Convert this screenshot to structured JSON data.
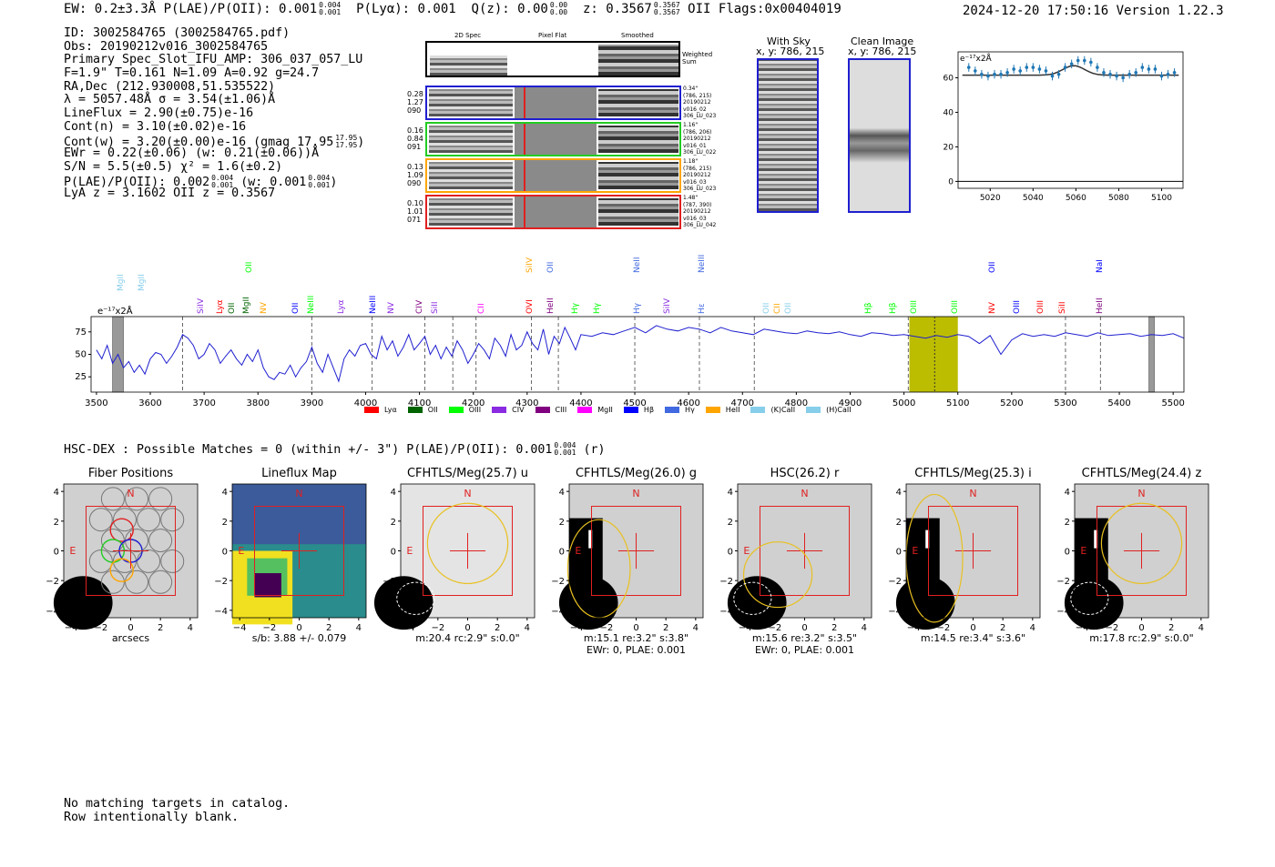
{
  "header": {
    "left": "EW: 0.2±3.3Å  P(LAE)/P(OII): 0.001",
    "plae_hi": "0.004",
    "plae_lo": "0.001",
    "plya": "P(Lyα): 0.001",
    "qz": "Q(z): 0.00",
    "qz_hi": "0.00",
    "qz_lo": "0.00",
    "z": "z: 0.3567",
    "z_hi": "0.3567",
    "z_lo": "0.3567",
    "z_tail": "OII    Flags:0x00404019",
    "right": "2024-12-20 17:50:16  Version 1.22.3"
  },
  "info": {
    "id": "ID: 3002584765 (3002584765.pdf)",
    "obs": "Obs: 20190212v016_3002584765",
    "primary": "Primary Spec_Slot_IFU_AMP: 306_037_057_LU",
    "fwhm": "F=1.9\"  T=0.161  N=1.09  A=0.92  g=24.7",
    "radec": "RA,Dec (212.930008,51.535522)",
    "lambda": "λ = 5057.48Å  σ = 3.54(±1.06)Å",
    "lineflux": "LineFlux = 2.90(±0.75)e-16",
    "contn": "Cont(n) = 3.10(±0.02)e-16",
    "contw": "Cont(w) = 3.20(±0.00)e-16 (gmag 17.95",
    "contw_hi": "17.95",
    "contw_lo": "17.95",
    "contw_tail": ")",
    "ewr": "EWr = 0.22(±0.06) (w: 0.21(±0.06))Å",
    "sn": "S/N = 5.5(±0.5)  χ² = 1.6(±0.2)",
    "plae": "P(LAE)/P(OII): 0.002",
    "plae_hi": "0.004",
    "plae_lo": "0.001",
    "plae_w": "(w: 0.001",
    "plae_w_hi": "0.004",
    "plae_w_lo": "0.001",
    "plae_tail": ")",
    "lya": "LyA z = 3.1602  OII z = 0.3567"
  },
  "spec2d": {
    "col_headers": [
      "2D Spec",
      "Pixel Flat",
      "Smoothed"
    ],
    "weighted_label": [
      "Weighted",
      "Sum"
    ],
    "rows": [
      {
        "left": [
          "0.28",
          "1.27",
          "090"
        ],
        "right": [
          "0.34\"",
          "(786, 215)",
          "20190212",
          "v016_02",
          "306_LU_023"
        ],
        "color": "#1f1fd0"
      },
      {
        "left": [
          "0.16",
          "0.84",
          "091"
        ],
        "right": [
          "1.16\"",
          "(786, 206)",
          "20190212",
          "v016_01",
          "306_LU_022"
        ],
        "color": "#22cc22"
      },
      {
        "left": [
          "0.13",
          "1.09",
          "090"
        ],
        "right": [
          "1.18\"",
          "(786, 215)",
          "20190212",
          "v016_03",
          "306_LU_023"
        ],
        "color": "#ffa500"
      },
      {
        "left": [
          "0.10",
          "1.01",
          "071"
        ],
        "right": [
          "1.48\"",
          "(787, 390)",
          "20190212",
          "v016_03",
          "306_LU_042"
        ],
        "color": "#e02020"
      }
    ]
  },
  "sky": {
    "title": "With Sky",
    "coord": "x, y: 786, 215"
  },
  "clean": {
    "title": "Clean Image",
    "coord": "x, y: 786, 215"
  },
  "chart_data": [
    {
      "type": "scatter",
      "title": "",
      "unit_label": "e⁻¹⁷x2Å",
      "x": [
        5010,
        5013,
        5016,
        5019,
        5022,
        5025,
        5028,
        5031,
        5034,
        5037,
        5040,
        5043,
        5046,
        5049,
        5052,
        5055,
        5058,
        5061,
        5064,
        5067,
        5070,
        5073,
        5076,
        5079,
        5082,
        5085,
        5088,
        5091,
        5094,
        5097,
        5100,
        5103,
        5106
      ],
      "y": [
        66,
        64,
        62,
        61,
        62,
        62,
        63,
        65,
        64,
        66,
        66,
        65,
        64,
        61,
        62,
        66,
        68,
        70,
        70,
        69,
        66,
        63,
        62,
        61,
        60,
        62,
        63,
        66,
        65,
        65,
        61,
        62,
        63
      ],
      "fit_baseline": 61.5,
      "fit_peak_x": 5059,
      "fit_peak_y": 67,
      "xticks": [
        5020,
        5040,
        5060,
        5080,
        5100
      ],
      "yticks": [
        0,
        20,
        40,
        60
      ],
      "xlim": [
        5005,
        5110
      ],
      "ylim": [
        -4,
        75
      ]
    },
    {
      "type": "line",
      "unit_label": "e⁻¹⁷x2Å",
      "xticks": [
        3500,
        3600,
        3700,
        3800,
        3900,
        4000,
        4100,
        4200,
        4300,
        4400,
        4500,
        4600,
        4700,
        4800,
        4900,
        5000,
        5100,
        5200,
        5300,
        5400,
        5500
      ],
      "yticks": [
        25,
        50,
        75
      ],
      "xlim": [
        3490,
        5520
      ],
      "ylim": [
        8,
        92
      ],
      "highlight": [
        5010,
        5100
      ],
      "marker_line": 5057,
      "hatched": [
        [
          3530,
          3550
        ],
        [
          5455,
          5465
        ]
      ],
      "dashed_lines": [
        3660,
        3900,
        4012,
        4110,
        4162,
        4205,
        4308,
        4358,
        4500,
        4620,
        4722,
        5008,
        5300,
        5365
      ],
      "x": [
        3500,
        3510,
        3520,
        3530,
        3540,
        3550,
        3560,
        3570,
        3580,
        3590,
        3600,
        3610,
        3620,
        3630,
        3640,
        3650,
        3660,
        3670,
        3680,
        3690,
        3700,
        3710,
        3720,
        3730,
        3740,
        3750,
        3760,
        3770,
        3780,
        3790,
        3800,
        3810,
        3820,
        3830,
        3840,
        3850,
        3860,
        3870,
        3880,
        3890,
        3900,
        3910,
        3920,
        3930,
        3940,
        3950,
        3960,
        3970,
        3980,
        3990,
        4000,
        4010,
        4020,
        4030,
        4040,
        4050,
        4060,
        4070,
        4080,
        4090,
        4100,
        4110,
        4120,
        4130,
        4140,
        4150,
        4160,
        4170,
        4180,
        4190,
        4200,
        4210,
        4220,
        4230,
        4240,
        4250,
        4260,
        4270,
        4280,
        4290,
        4300,
        4310,
        4320,
        4330,
        4340,
        4350,
        4360,
        4370,
        4380,
        4390,
        4400,
        4420,
        4440,
        4460,
        4480,
        4500,
        4520,
        4540,
        4560,
        4580,
        4600,
        4620,
        4640,
        4660,
        4680,
        4700,
        4720,
        4740,
        4760,
        4780,
        4800,
        4820,
        4840,
        4860,
        4880,
        4900,
        4920,
        4940,
        4960,
        4980,
        5000,
        5020,
        5040,
        5060,
        5080,
        5100,
        5120,
        5140,
        5160,
        5180,
        5200,
        5220,
        5240,
        5260,
        5280,
        5300,
        5320,
        5340,
        5360,
        5380,
        5400,
        5420,
        5440,
        5460,
        5480,
        5500,
        5520
      ],
      "y": [
        55,
        45,
        60,
        40,
        50,
        35,
        42,
        30,
        38,
        28,
        45,
        52,
        50,
        40,
        48,
        58,
        72,
        68,
        60,
        45,
        50,
        62,
        55,
        40,
        48,
        55,
        45,
        38,
        50,
        42,
        55,
        35,
        25,
        22,
        30,
        28,
        38,
        25,
        35,
        42,
        58,
        40,
        30,
        50,
        35,
        20,
        45,
        55,
        48,
        60,
        62,
        50,
        45,
        70,
        55,
        65,
        48,
        58,
        72,
        55,
        62,
        70,
        50,
        60,
        45,
        58,
        48,
        65,
        55,
        40,
        50,
        62,
        55,
        45,
        68,
        60,
        48,
        72,
        55,
        60,
        75,
        62,
        55,
        78,
        50,
        70,
        62,
        80,
        68,
        55,
        72,
        70,
        74,
        72,
        76,
        80,
        74,
        82,
        78,
        76,
        80,
        78,
        74,
        80,
        76,
        74,
        72,
        78,
        76,
        74,
        73,
        76,
        74,
        73,
        75,
        72,
        70,
        74,
        73,
        71,
        72,
        70,
        68,
        71,
        69,
        72,
        70,
        62,
        71,
        50,
        66,
        73,
        70,
        72,
        70,
        74,
        72,
        70,
        74,
        71,
        72,
        73,
        70,
        72,
        71,
        73,
        68
      ]
    }
  ],
  "spec_labels": {
    "unit_label": "e⁻¹⁷x2Å",
    "legend": [
      {
        "name": "Lyα",
        "color": "#ff0000"
      },
      {
        "name": "OII",
        "color": "#006400"
      },
      {
        "name": "OIII",
        "color": "#00ff00"
      },
      {
        "name": "CIV",
        "color": "#8a2be2"
      },
      {
        "name": "CIII",
        "color": "#800080"
      },
      {
        "name": "MgII",
        "color": "#ff00ff"
      },
      {
        "name": "Hβ",
        "color": "#0000ff"
      },
      {
        "name": "Hγ",
        "color": "#4169e1"
      },
      {
        "name": "HeII",
        "color": "#ffa500"
      },
      {
        "name": "(K)CaII",
        "color": "#87ceeb"
      },
      {
        "name": "(H)CaII",
        "color": "#87ceeb"
      }
    ],
    "lines": [
      {
        "name": "MgII",
        "w": 3545,
        "row": 1,
        "color": "#87ceeb"
      },
      {
        "name": "MgII",
        "w": 3585,
        "row": 1,
        "color": "#87ceeb"
      },
      {
        "name": "SiIV",
        "w": 3695,
        "row": 2,
        "color": "#8a2be2"
      },
      {
        "name": "Lyα",
        "w": 3730,
        "row": 2,
        "color": "#ff0000"
      },
      {
        "name": "OII",
        "w": 3752,
        "row": 2,
        "color": "#006400"
      },
      {
        "name": "MgII",
        "w": 3780,
        "row": 2,
        "color": "#006400"
      },
      {
        "name": "OII",
        "w": 3785,
        "row": 0,
        "color": "#00ff00"
      },
      {
        "name": "NV",
        "w": 3812,
        "row": 2,
        "color": "#ffa500"
      },
      {
        "name": "OII",
        "w": 3870,
        "row": 2,
        "color": "#0000ff"
      },
      {
        "name": "NeIII",
        "w": 3900,
        "row": 2,
        "color": "#00ff00"
      },
      {
        "name": "Lyα",
        "w": 3955,
        "row": 2,
        "color": "#8a2be2"
      },
      {
        "name": "NeIII",
        "w": 4015,
        "row": 2,
        "color": "#0000ff"
      },
      {
        "name": "NV",
        "w": 4048,
        "row": 2,
        "color": "#8a2be2"
      },
      {
        "name": "CIV",
        "w": 4100,
        "row": 2,
        "color": "#800080"
      },
      {
        "name": "SiII",
        "w": 4130,
        "row": 2,
        "color": "#8a2be2"
      },
      {
        "name": "CII",
        "w": 4215,
        "row": 2,
        "color": "#ff00ff"
      },
      {
        "name": "SiIV",
        "w": 4305,
        "row": 0,
        "color": "#ffa500"
      },
      {
        "name": "OVI",
        "w": 4305,
        "row": 2,
        "color": "#ff0000"
      },
      {
        "name": "OII",
        "w": 4345,
        "row": 0,
        "color": "#4169e1"
      },
      {
        "name": "HeII",
        "w": 4345,
        "row": 2,
        "color": "#800080"
      },
      {
        "name": "Hγ",
        "w": 4390,
        "row": 2,
        "color": "#00ff00"
      },
      {
        "name": "Hγ",
        "w": 4430,
        "row": 2,
        "color": "#00ff00"
      },
      {
        "name": "NeII",
        "w": 4505,
        "row": 0,
        "color": "#4169e1"
      },
      {
        "name": "Hγ",
        "w": 4505,
        "row": 2,
        "color": "#4169e1"
      },
      {
        "name": "SiIV",
        "w": 4560,
        "row": 2,
        "color": "#8a2be2"
      },
      {
        "name": "NeIII",
        "w": 4625,
        "row": 0,
        "color": "#4169e1"
      },
      {
        "name": "Hε",
        "w": 4625,
        "row": 2,
        "color": "#4169e1"
      },
      {
        "name": "OII",
        "w": 4745,
        "row": 2,
        "color": "#87ceeb"
      },
      {
        "name": "CII",
        "w": 4765,
        "row": 2,
        "color": "#ffa500"
      },
      {
        "name": "OII",
        "w": 4785,
        "row": 2,
        "color": "#87ceeb"
      },
      {
        "name": "Hβ",
        "w": 4935,
        "row": 2,
        "color": "#00ff00"
      },
      {
        "name": "Hβ",
        "w": 4980,
        "row": 2,
        "color": "#00ff00"
      },
      {
        "name": "OIII",
        "w": 5020,
        "row": 2,
        "color": "#00ff00"
      },
      {
        "name": "OIII",
        "w": 5095,
        "row": 2,
        "color": "#00ff00"
      },
      {
        "name": "OII",
        "w": 5165,
        "row": 0,
        "color": "#0000ff"
      },
      {
        "name": "NV",
        "w": 5165,
        "row": 2,
        "color": "#ff0000"
      },
      {
        "name": "OIII",
        "w": 5210,
        "row": 2,
        "color": "#0000ff"
      },
      {
        "name": "OIII",
        "w": 5255,
        "row": 2,
        "color": "#ff0000"
      },
      {
        "name": "SiII",
        "w": 5295,
        "row": 2,
        "color": "#ff0000"
      },
      {
        "name": "NaI",
        "w": 5365,
        "row": 0,
        "color": "#0000ff"
      },
      {
        "name": "HeII",
        "w": 5365,
        "row": 2,
        "color": "#800080"
      }
    ]
  },
  "hsc": {
    "title": "HSC-DEX : Possible Matches = 0 (within +/- 3\")  P(LAE)/P(OII): 0.001",
    "hi": "0.004",
    "lo": "0.001",
    "tail": "(r)"
  },
  "cutouts": [
    {
      "title": "Fiber Positions",
      "caption1": "arcsecs",
      "caption2": "",
      "kind": "fiber"
    },
    {
      "title": "Lineflux Map",
      "caption1": "s/b: 3.88 +/- 0.079",
      "caption2": "",
      "kind": "lineflux"
    },
    {
      "title": "CFHTLS/Meg(25.7) u",
      "caption1": "m:20.4 rc:2.9\"  s:0.0\"",
      "caption2": "",
      "kind": "u"
    },
    {
      "title": "CFHTLS/Meg(26.0) g",
      "caption1": "m:15.1  re:3.2\"  s:3.8\"",
      "caption2": "EWr: 0, PLAE: 0.001",
      "kind": "g"
    },
    {
      "title": "HSC(26.2) r",
      "caption1": "m:15.6  re:3.2\"  s:3.5\"",
      "caption2": "EWr: 0, PLAE: 0.001",
      "kind": "r"
    },
    {
      "title": "CFHTLS/Meg(25.3) i",
      "caption1": "m:14.5  re:3.4\"  s:3.6\"",
      "caption2": "",
      "kind": "i"
    },
    {
      "title": "CFHTLS/Meg(24.4) z",
      "caption1": "m:17.8 rc:2.9\"  s:0.0\"",
      "caption2": "",
      "kind": "z"
    }
  ],
  "cutout_axis": {
    "ticks": [
      "4",
      "2",
      "0",
      "−2",
      "−4"
    ],
    "xticks": [
      "−4",
      "−2",
      "0",
      "2",
      "4"
    ],
    "n_label": "N",
    "e_label": "E"
  },
  "footer": {
    "line1": "No matching targets in catalog.",
    "line2": "Row intentionally blank."
  }
}
